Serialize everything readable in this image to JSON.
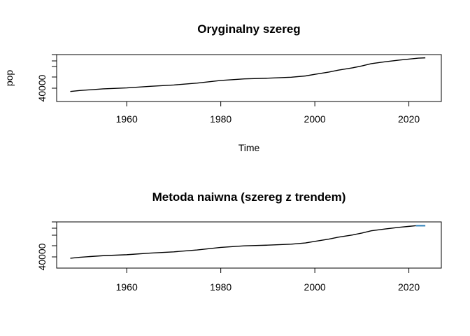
{
  "chart_data": [
    {
      "type": "line",
      "title": "Oryginalny szereg",
      "xlabel": "Time",
      "ylabel": "pop",
      "x_ticks": [
        1960,
        1980,
        2000,
        2020
      ],
      "x_tick_labels": [
        "1960",
        "1980",
        "2000",
        "2020"
      ],
      "y_tick_labels": [
        "40000"
      ],
      "xlim": [
        1945.1,
        2026.9
      ],
      "series": [
        {
          "color": "#000000",
          "x": [
            1948,
            1950,
            1955,
            1960,
            1965,
            1970,
            1975,
            1980,
            1985,
            1990,
            1995,
            1998,
            2000,
            2003,
            2005,
            2008,
            2010,
            2012,
            2015,
            2018,
            2020,
            2022,
            2023.5
          ],
          "y": [
            0.02,
            0.05,
            0.1,
            0.13,
            0.18,
            0.22,
            0.28,
            0.36,
            0.41,
            0.43,
            0.46,
            0.5,
            0.55,
            0.62,
            0.68,
            0.75,
            0.81,
            0.88,
            0.94,
            0.99,
            1.02,
            1.05,
            1.06
          ]
        }
      ]
    },
    {
      "type": "line",
      "title": "Metoda naiwna (szereg z trendem)",
      "xlabel": "",
      "ylabel": "",
      "x_ticks": [
        1960,
        1980,
        2000,
        2020
      ],
      "x_tick_labels": [
        "1960",
        "1980",
        "2000",
        "2020"
      ],
      "y_tick_labels": [
        "40000"
      ],
      "xlim": [
        1945.1,
        2026.9
      ],
      "series": [
        {
          "color": "#000000",
          "x": [
            1948,
            1950,
            1955,
            1960,
            1965,
            1970,
            1975,
            1980,
            1985,
            1990,
            1995,
            1998,
            2000,
            2003,
            2005,
            2008,
            2010,
            2012,
            2015,
            2018,
            2020,
            2021.5
          ],
          "y": [
            0.02,
            0.05,
            0.1,
            0.13,
            0.18,
            0.22,
            0.28,
            0.36,
            0.41,
            0.43,
            0.46,
            0.5,
            0.55,
            0.62,
            0.68,
            0.75,
            0.81,
            0.88,
            0.94,
            0.99,
            1.02,
            1.04
          ]
        },
        {
          "color": "#2c7fb8",
          "x": [
            2021.5,
            2023.5
          ],
          "y": [
            1.04,
            1.04
          ]
        }
      ]
    }
  ]
}
